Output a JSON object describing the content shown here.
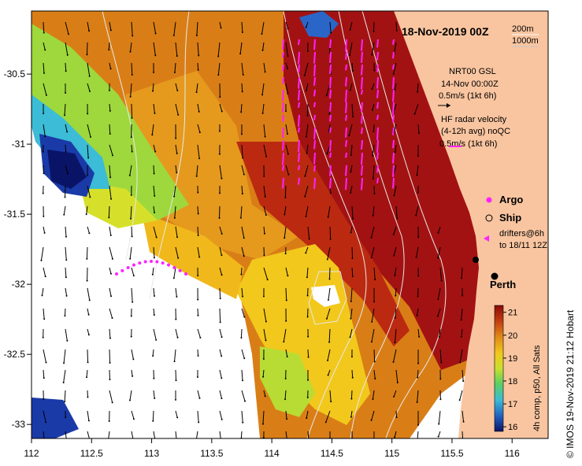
{
  "title": "18-Nov-2019 00Z",
  "contour_legend": {
    "shallow": "200m",
    "deep": "1000m"
  },
  "velocity_legend": {
    "gsl_title": "NRT00 GSL",
    "gsl_time": "14-Nov 00:00Z",
    "gsl_scale": "0.5m/s (1kt 6h)",
    "hf_title": "HF radar velocity",
    "hf_avg": "(4-12h avg) noQC",
    "hf_scale": "0.5m/s (1kt 6h)"
  },
  "symbols": {
    "argo": "Argo",
    "ship": "Ship",
    "drifters_line1": "drifters@6h",
    "drifters_line2": "to 18/11 12Z"
  },
  "place": {
    "name": "Perth"
  },
  "colorbar": {
    "label": "4h comp, p50, All Sats",
    "ticks": [
      "21",
      "20",
      "19",
      "18",
      "17",
      "16"
    ],
    "min": 15.8,
    "max": 21.3
  },
  "credit": "© IMOS 19-Nov-2019 21:12 Hobart",
  "axes": {
    "x_ticks": [
      "112",
      "112.5",
      "113",
      "113.5",
      "114",
      "114.5",
      "115",
      "115.5",
      "116"
    ],
    "y_ticks": [
      "-30.5",
      "-31",
      "-31.5",
      "-32",
      "-32.5",
      "-33"
    ],
    "lon_range": [
      112,
      116.3
    ],
    "lat_range": [
      -33.1,
      -30.05
    ]
  },
  "colors": {
    "land": "#f9c5a0",
    "sst_dark_red": "#a31212",
    "sst_orange": "#d97e16",
    "sst_yellow": "#f2c81c",
    "sst_green": "#9ed83c",
    "sst_cyan": "#3cbcd6",
    "sst_blue": "#1a3aa8",
    "sst_navy": "#0a1466",
    "hf_vectors": "#ff22ff",
    "contours": "#e8e8e8"
  }
}
